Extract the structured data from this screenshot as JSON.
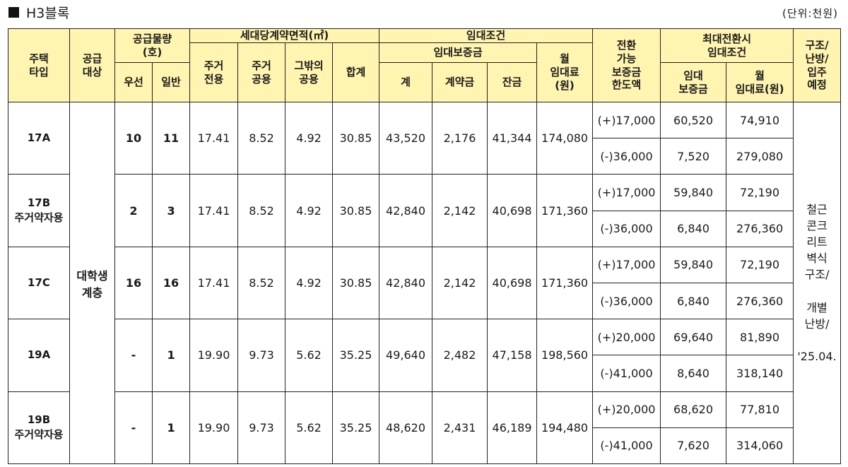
{
  "title": "H3블록",
  "unit": "(단위:천원)",
  "header": {
    "house_type": [
      "주택",
      "타입"
    ],
    "supply_target": [
      "공급",
      "대상"
    ],
    "supply_qty": [
      "공급물량",
      "(호)"
    ],
    "priority": "우선",
    "general": "일반",
    "area": "세대당계약면적(㎡)",
    "res_exclusive": [
      "주거",
      "전용"
    ],
    "res_common": [
      "주거",
      "공용"
    ],
    "other_common": [
      "그밖의",
      "공용"
    ],
    "area_total": "합계",
    "lease": "임대조건",
    "deposit": "임대보증금",
    "dep_total": "계",
    "dep_contract": "계약금",
    "dep_balance": "잔금",
    "monthly": [
      "월",
      "임대료",
      "(원)"
    ],
    "convertible": [
      "전환",
      "가능",
      "보증금",
      "한도액"
    ],
    "max_conv": [
      "최대전환시",
      "임대조건"
    ],
    "max_dep": [
      "임대",
      "보증금"
    ],
    "max_monthly": [
      "월",
      "임대료(원)"
    ],
    "structure": [
      "구조/",
      "난방/",
      "입주",
      "예정"
    ]
  },
  "target": [
    "대학생",
    "계층"
  ],
  "structure_text": [
    "철근",
    "콘크",
    "리트",
    "벽식",
    "구조/",
    "",
    "개별",
    "난방/",
    "",
    "'25.04."
  ],
  "rows": [
    {
      "type": [
        "17A"
      ],
      "priority": "10",
      "general": "11",
      "excl": "17.41",
      "comm": "8.52",
      "other": "4.92",
      "total": "30.85",
      "dep_total": "43,520",
      "dep_contract": "2,176",
      "dep_balance": "41,344",
      "monthly": "174,080",
      "conv": [
        {
          "limit": "(+)17,000",
          "deposit": "60,520",
          "monthly": "74,910"
        },
        {
          "limit": "(-)36,000",
          "deposit": "7,520",
          "monthly": "279,080"
        }
      ]
    },
    {
      "type": [
        "17B",
        "주거약자용"
      ],
      "priority": "2",
      "general": "3",
      "excl": "17.41",
      "comm": "8.52",
      "other": "4.92",
      "total": "30.85",
      "dep_total": "42,840",
      "dep_contract": "2,142",
      "dep_balance": "40,698",
      "monthly": "171,360",
      "conv": [
        {
          "limit": "(+)17,000",
          "deposit": "59,840",
          "monthly": "72,190"
        },
        {
          "limit": "(-)36,000",
          "deposit": "6,840",
          "monthly": "276,360"
        }
      ]
    },
    {
      "type": [
        "17C"
      ],
      "priority": "16",
      "general": "16",
      "excl": "17.41",
      "comm": "8.52",
      "other": "4.92",
      "total": "30.85",
      "dep_total": "42,840",
      "dep_contract": "2,142",
      "dep_balance": "40,698",
      "monthly": "171,360",
      "conv": [
        {
          "limit": "(+)17,000",
          "deposit": "59,840",
          "monthly": "72,190"
        },
        {
          "limit": "(-)36,000",
          "deposit": "6,840",
          "monthly": "276,360"
        }
      ]
    },
    {
      "type": [
        "19A"
      ],
      "priority": "-",
      "general": "1",
      "excl": "19.90",
      "comm": "9.73",
      "other": "5.62",
      "total": "35.25",
      "dep_total": "49,640",
      "dep_contract": "2,482",
      "dep_balance": "47,158",
      "monthly": "198,560",
      "conv": [
        {
          "limit": "(+)20,000",
          "deposit": "69,640",
          "monthly": "81,890"
        },
        {
          "limit": "(-)41,000",
          "deposit": "8,640",
          "monthly": "318,140"
        }
      ]
    },
    {
      "type": [
        "19B",
        "주거약자용"
      ],
      "priority": "-",
      "general": "1",
      "excl": "19.90",
      "comm": "9.73",
      "other": "5.62",
      "total": "35.25",
      "dep_total": "48,620",
      "dep_contract": "2,431",
      "dep_balance": "46,189",
      "monthly": "194,480",
      "conv": [
        {
          "limit": "(+)20,000",
          "deposit": "68,620",
          "monthly": "77,810"
        },
        {
          "limit": "(-)41,000",
          "deposit": "7,620",
          "monthly": "314,060"
        }
      ]
    }
  ]
}
